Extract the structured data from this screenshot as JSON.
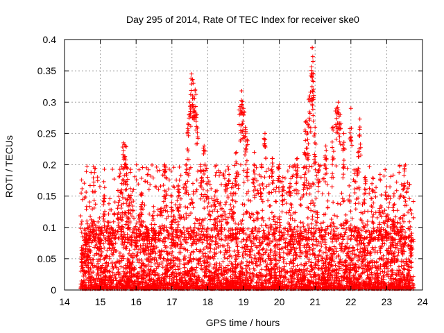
{
  "chart_data": {
    "type": "scatter",
    "title": "Day 295 of 2014, Rate Of TEC Index for receiver ske0",
    "xlabel": "GPS time / hours",
    "ylabel": "ROTI / TECUs",
    "xlim": [
      14,
      24
    ],
    "ylim": [
      0,
      0.4
    ],
    "xticks": [
      "14",
      "15",
      "16",
      "17",
      "18",
      "19",
      "20",
      "21",
      "22",
      "23",
      "24"
    ],
    "yticks": [
      "0",
      "0.05",
      "0.1",
      "0.15",
      "0.2",
      "0.25",
      "0.3",
      "0.35",
      "0.4"
    ],
    "grid": true,
    "marker": "+",
    "marker_color": "#ff0000",
    "series": [
      {
        "name": "ROTI",
        "x": [
          14.5,
          14.6,
          14.8,
          15.0,
          15.1,
          15.3,
          15.5,
          15.6,
          15.65,
          15.7,
          15.72,
          15.8,
          16.0,
          16.1,
          16.15,
          16.3,
          16.5,
          16.7,
          16.8,
          16.82,
          17.0,
          17.2,
          17.4,
          17.45,
          17.5,
          17.55,
          17.6,
          17.65,
          17.7,
          17.8,
          17.9,
          18.0,
          18.2,
          18.4,
          18.5,
          18.7,
          18.8,
          18.9,
          18.95,
          19.0,
          19.05,
          19.1,
          19.3,
          19.5,
          19.6,
          19.8,
          20.0,
          20.1,
          20.3,
          20.5,
          20.7,
          20.75,
          20.8,
          20.85,
          20.9,
          20.92,
          20.95,
          21.0,
          21.1,
          21.3,
          21.5,
          21.6,
          21.65,
          21.7,
          21.8,
          22.0,
          22.2,
          22.25,
          22.4,
          22.6,
          22.8,
          23.0,
          23.2,
          23.4,
          23.5,
          23.7
        ],
        "values": [
          0.06,
          0.09,
          0.11,
          0.08,
          0.15,
          0.1,
          0.14,
          0.17,
          0.235,
          0.23,
          0.2,
          0.15,
          0.09,
          0.12,
          0.155,
          0.1,
          0.09,
          0.13,
          0.2,
          0.19,
          0.15,
          0.16,
          0.2,
          0.265,
          0.3,
          0.345,
          0.33,
          0.32,
          0.28,
          0.2,
          0.23,
          0.18,
          0.15,
          0.13,
          0.19,
          0.17,
          0.22,
          0.293,
          0.318,
          0.29,
          0.26,
          0.24,
          0.22,
          0.2,
          0.25,
          0.21,
          0.2,
          0.18,
          0.17,
          0.21,
          0.22,
          0.27,
          0.265,
          0.31,
          0.345,
          0.387,
          0.32,
          0.26,
          0.2,
          0.23,
          0.26,
          0.29,
          0.3,
          0.28,
          0.25,
          0.29,
          0.22,
          0.273,
          0.18,
          0.16,
          0.13,
          0.165,
          0.15,
          0.1,
          0.198,
          0.08
        ]
      }
    ],
    "dense_cloud_range_x": [
      14.45,
      23.75
    ],
    "dense_cloud_range_y": [
      0.002,
      0.1
    ]
  }
}
